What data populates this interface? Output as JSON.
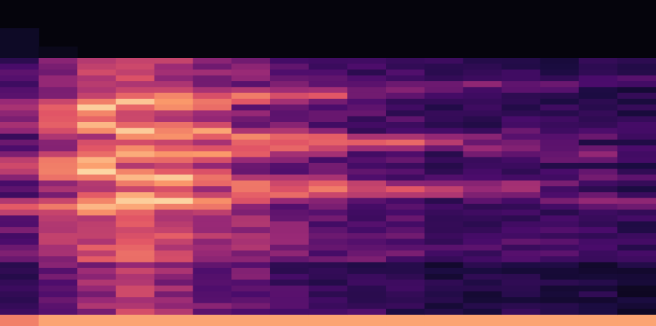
{
  "image": {
    "kind": "spectrogram",
    "colormap": "magma",
    "colors": {
      "background": "#05040c",
      "low": "#1b0c41",
      "mid_low": "#4a0c6b",
      "mid": "#9a2a76",
      "mid_high": "#e15566",
      "high": "#fb9a6a",
      "peak": "#fde9b5"
    },
    "time_frames": 17,
    "frequency_bands": 44,
    "frame_intensity_profile": [
      0.42,
      0.62,
      0.76,
      0.8,
      0.74,
      0.64,
      0.58,
      0.5,
      0.44,
      0.42,
      0.4,
      0.34,
      0.32,
      0.34,
      0.32,
      0.3,
      0.26
    ],
    "band_emphasis": {
      "formant_bands": [
        7,
        12,
        16,
        20,
        24
      ],
      "bright_bottom_row": true,
      "silent_top_rows": 8
    }
  }
}
